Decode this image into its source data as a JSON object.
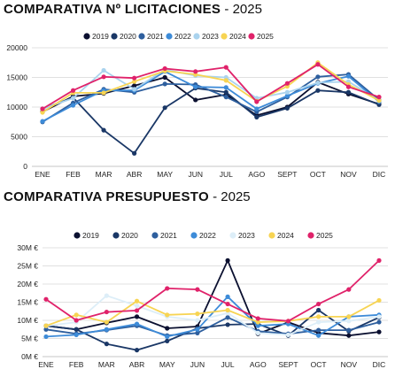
{
  "chart_data": [
    {
      "type": "line",
      "title": "COMPARATIVA Nº LICITACIONES",
      "subtitle": "- 2025",
      "categories": [
        "ENE",
        "FEB",
        "MAR",
        "ABR",
        "MAY",
        "JUN",
        "JUL",
        "AGO",
        "SEPT",
        "OCT",
        "NOV",
        "DIC"
      ],
      "ylim": [
        0,
        20000
      ],
      "yticks": [
        0,
        5000,
        10000,
        15000,
        20000
      ],
      "ytick_labels": [
        "0",
        "5000",
        "10000",
        "15000",
        "20000"
      ],
      "grid": true,
      "legend_position": "top",
      "series": [
        {
          "name": "2019",
          "color": "#0b1030",
          "values": [
            9200,
            11800,
            12300,
            13600,
            15000,
            11200,
            12100,
            8600,
            10000,
            14200,
            12200,
            10500
          ]
        },
        {
          "name": "2020",
          "color": "#1a3766",
          "values": [
            9700,
            11600,
            6100,
            2200,
            9900,
            13200,
            12500,
            8300,
            9800,
            12800,
            12500,
            10400
          ]
        },
        {
          "name": "2021",
          "color": "#2e5f9e",
          "values": [
            7500,
            10700,
            13000,
            12500,
            13900,
            13800,
            11700,
            9200,
            11700,
            15100,
            15500,
            11200
          ]
        },
        {
          "name": "2022",
          "color": "#3d8bd8",
          "values": [
            7600,
            10300,
            12800,
            12800,
            16000,
            13400,
            13300,
            9700,
            11900,
            14000,
            15200,
            10900
          ]
        },
        {
          "name": "2023",
          "color": "#aad3ee",
          "values": [
            9700,
            11500,
            16200,
            13000,
            16300,
            15300,
            15000,
            11500,
            12500,
            14100,
            14300,
            11100
          ]
        },
        {
          "name": "2024",
          "color": "#f7d453",
          "values": [
            9100,
            12400,
            12400,
            14300,
            16100,
            15500,
            14500,
            11000,
            13500,
            17500,
            13800,
            11100
          ]
        },
        {
          "name": "2025",
          "color": "#e0226a",
          "values": [
            9700,
            12800,
            15100,
            14900,
            16500,
            16000,
            16700,
            10900,
            14000,
            17200,
            13400,
            11700
          ]
        }
      ]
    },
    {
      "type": "line",
      "title": "COMPARATIVA PRESUPUESTO",
      "subtitle": "- 2025",
      "categories": [
        "ENE",
        "FEB",
        "MAR",
        "ABR",
        "MAY",
        "JUN",
        "JUL",
        "AGO",
        "SEPT",
        "OCT",
        "NOV",
        "DIC"
      ],
      "ylim": [
        0,
        30
      ],
      "yticks": [
        0,
        5,
        10,
        15,
        20,
        25,
        30
      ],
      "ytick_labels": [
        "0M €",
        "5M €",
        "10M €",
        "15M €",
        "20M €",
        "25M €",
        "30M €"
      ],
      "grid": true,
      "legend_position": "top",
      "series": [
        {
          "name": "2019",
          "color": "#0b1030",
          "values": [
            8.5,
            7.5,
            9.3,
            11.0,
            7.8,
            8.3,
            26.5,
            6.3,
            9.5,
            6.5,
            5.8,
            6.8
          ]
        },
        {
          "name": "2020",
          "color": "#1a3766",
          "values": [
            8.5,
            7.5,
            3.5,
            1.8,
            4.3,
            7.8,
            8.8,
            9.0,
            5.8,
            12.8,
            7.0,
            10.8
          ]
        },
        {
          "name": "2021",
          "color": "#2e5f9e",
          "values": [
            7.5,
            6.3,
            7.3,
            8.5,
            5.8,
            6.5,
            10.8,
            7.0,
            6.3,
            7.3,
            7.3,
            9.5
          ]
        },
        {
          "name": "2022",
          "color": "#3d8bd8",
          "values": [
            5.5,
            6.0,
            7.5,
            9.0,
            5.5,
            7.5,
            16.5,
            8.5,
            9.0,
            5.8,
            11.0,
            11.5
          ]
        },
        {
          "name": "2023",
          "color": "#ddeef8",
          "values": [
            8.5,
            9.5,
            16.8,
            14.0,
            11.0,
            10.0,
            12.0,
            6.5,
            6.0,
            9.5,
            9.8,
            11.0
          ]
        },
        {
          "name": "2024",
          "color": "#f7d453",
          "values": [
            8.5,
            11.5,
            9.5,
            15.3,
            11.5,
            11.8,
            12.8,
            9.5,
            9.8,
            11.0,
            11.0,
            15.5
          ]
        },
        {
          "name": "2025",
          "color": "#e0226a",
          "values": [
            15.8,
            10.0,
            12.3,
            12.7,
            18.8,
            18.5,
            14.5,
            10.5,
            9.8,
            14.5,
            18.5,
            26.5
          ]
        }
      ]
    }
  ]
}
